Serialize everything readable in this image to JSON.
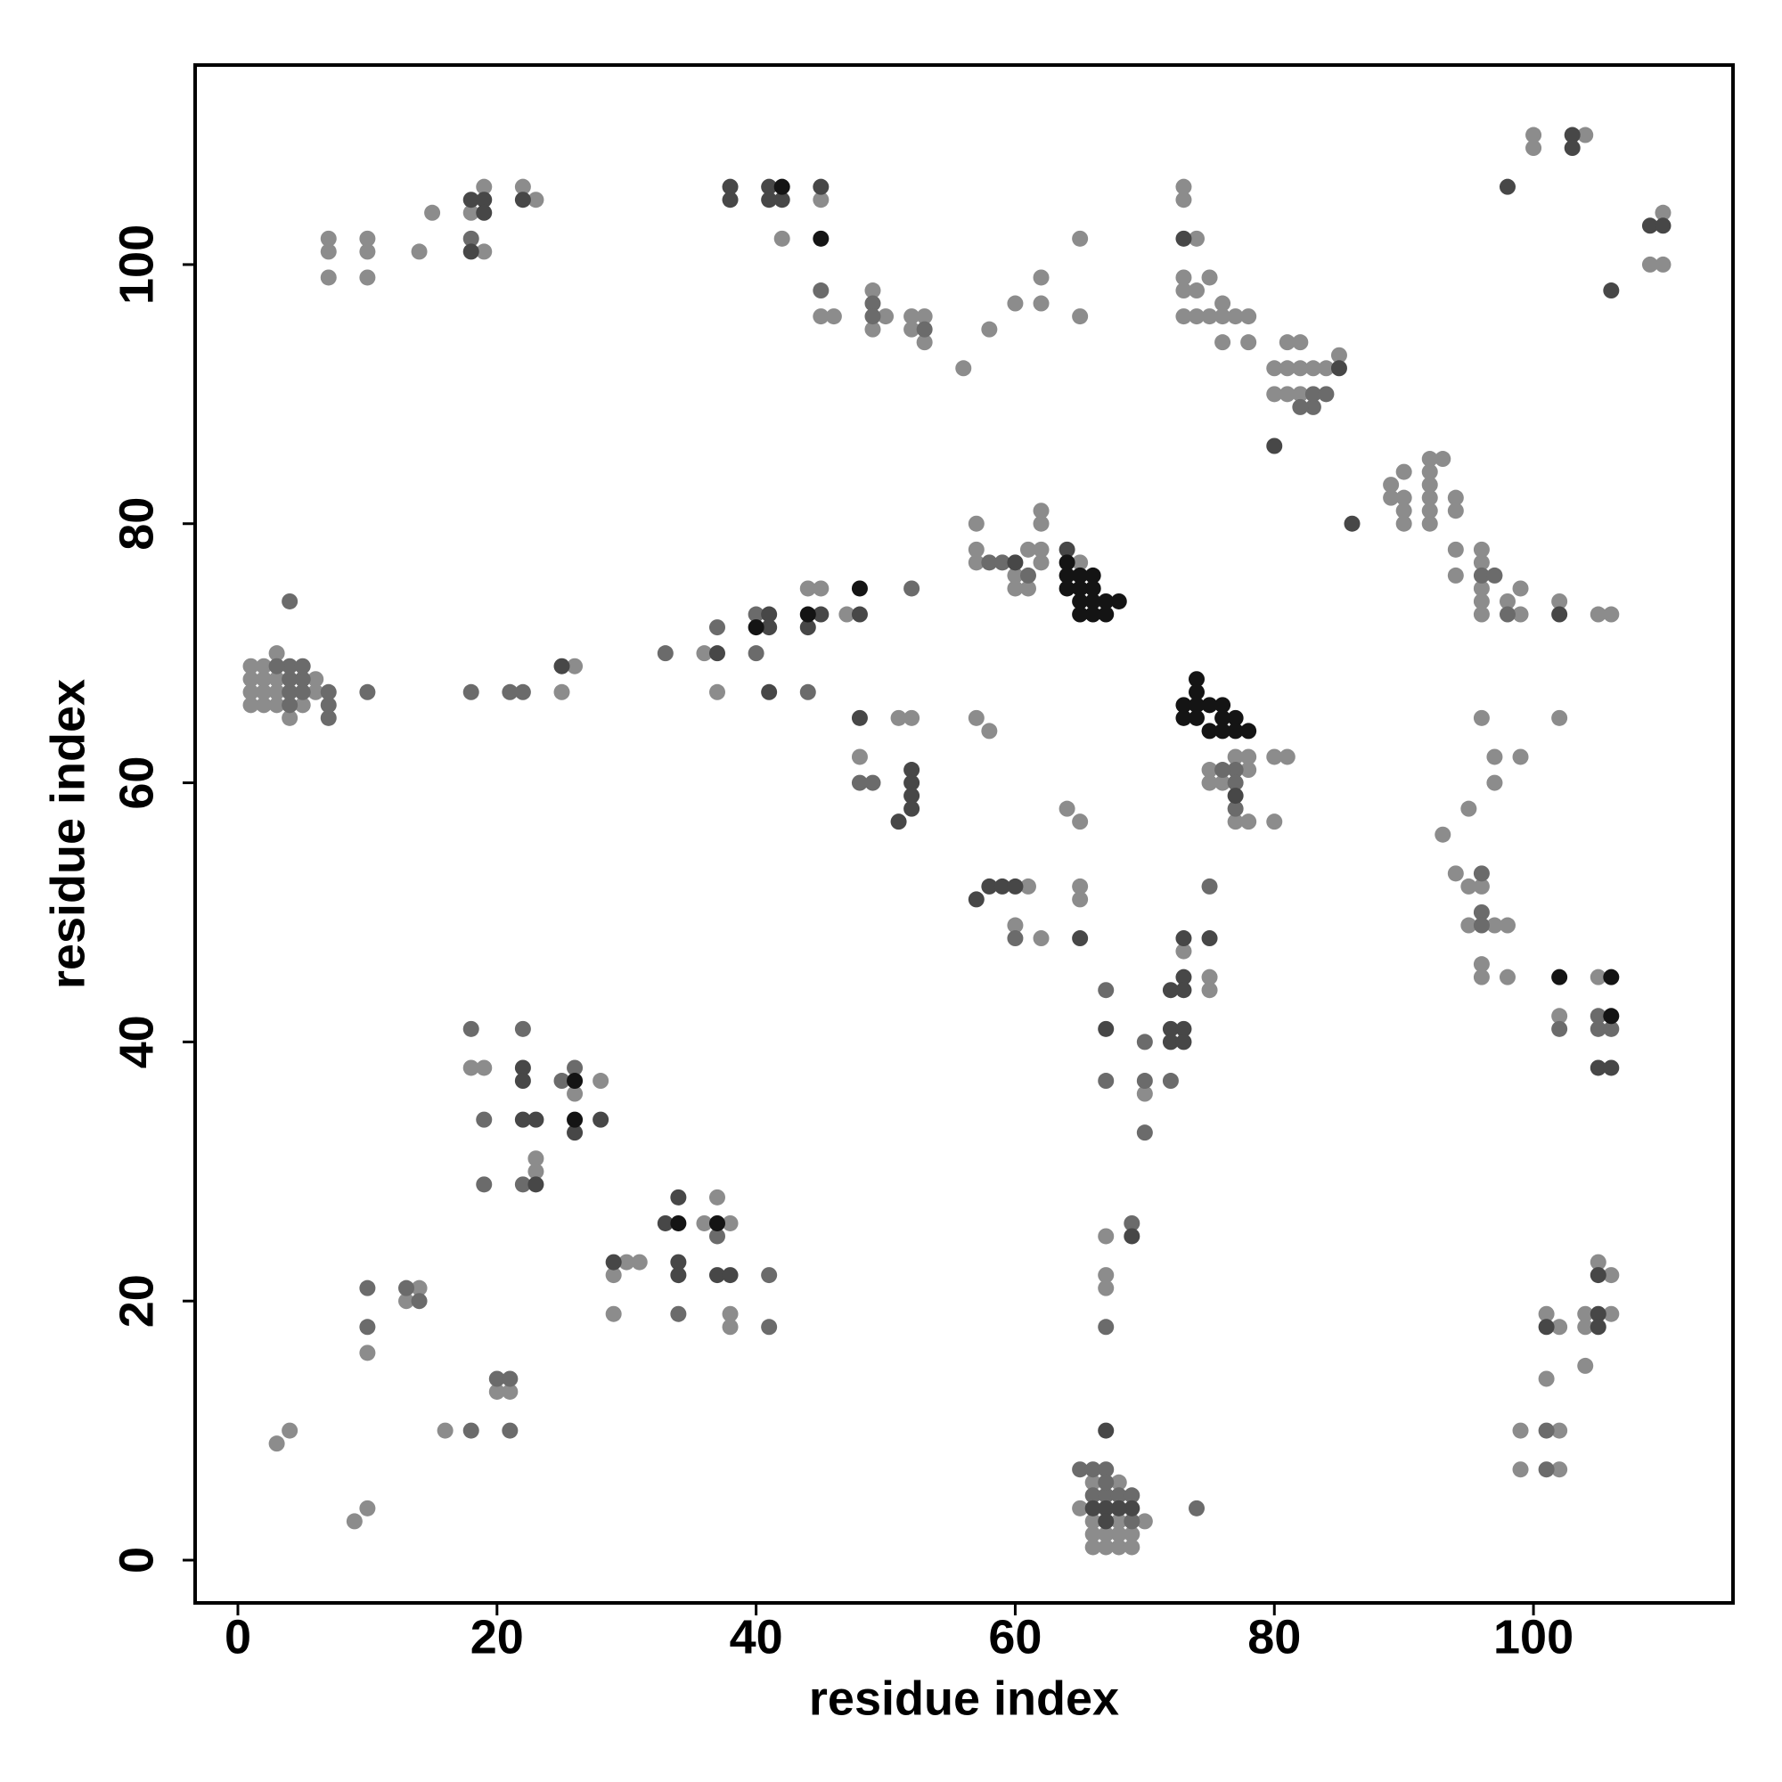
{
  "chart_data": {
    "type": "scatter",
    "xlabel": "residue index",
    "ylabel": "residue index",
    "xlim": [
      -3.3,
      115.4
    ],
    "ylim": [
      -3.3,
      115.4
    ],
    "xticks": [
      0,
      20,
      40,
      60,
      80,
      100
    ],
    "yticks": [
      0,
      20,
      40,
      60,
      80,
      100
    ],
    "grid": false,
    "series": [
      {
        "color": "#8c8c8c",
        "x": [
          3,
          4,
          9,
          10,
          10,
          13,
          14,
          16,
          20,
          21,
          18,
          19,
          23,
          23,
          26,
          28,
          29,
          30,
          31,
          29,
          36,
          37,
          38,
          38,
          38,
          1,
          1,
          1,
          1,
          2,
          2,
          2,
          2,
          3,
          3,
          3,
          4,
          5,
          6,
          6,
          25,
          26,
          37,
          36,
          44,
          45,
          47,
          52,
          51,
          48,
          57,
          58,
          61,
          60,
          62,
          64,
          65,
          65,
          65,
          57,
          57,
          57,
          60,
          60,
          61,
          62,
          62,
          61,
          62,
          62,
          65,
          58,
          56,
          60,
          62,
          62,
          65,
          65,
          73,
          73,
          74,
          73,
          73,
          73,
          74,
          74,
          75,
          75,
          76,
          76,
          76,
          77,
          78,
          78,
          80,
          80,
          81,
          81,
          81,
          82,
          82,
          82,
          83,
          84,
          85,
          75,
          75,
          76,
          77,
          78,
          78,
          78,
          77,
          80,
          81,
          80,
          70,
          73,
          75,
          75,
          67,
          67,
          67,
          66,
          66,
          66,
          67,
          67,
          68,
          68,
          68,
          68,
          69,
          69,
          70,
          65,
          66,
          7,
          7,
          7,
          10,
          10,
          10,
          14,
          15,
          18,
          19,
          19,
          22,
          23,
          42,
          45,
          45,
          46,
          49,
          49,
          50,
          52,
          53,
          52,
          53,
          100,
          100,
          104,
          110,
          109,
          110,
          89,
          89,
          90,
          90,
          90,
          90,
          92,
          92,
          92,
          92,
          92,
          92,
          93,
          94,
          94,
          94,
          94,
          96,
          96,
          96,
          96,
          96,
          98,
          99,
          99,
          102,
          105,
          106,
          96,
          97,
          97,
          99,
          102,
          95,
          93,
          94,
          95,
          96,
          95,
          97,
          98,
          96,
          96,
          98,
          102,
          105,
          105,
          106,
          104,
          106,
          104,
          101,
          102,
          104,
          101,
          99,
          102,
          99,
          102,
          3
        ],
        "values": [
          9,
          10,
          3,
          4,
          16,
          20,
          21,
          10,
          13,
          13,
          38,
          38,
          31,
          30,
          36,
          37,
          22,
          23,
          23,
          19,
          26,
          28,
          26,
          19,
          18,
          66,
          67,
          68,
          69,
          66,
          67,
          68,
          69,
          66,
          67,
          68,
          65,
          66,
          67,
          68,
          67,
          69,
          67,
          70,
          75,
          75,
          73,
          65,
          65,
          62,
          65,
          64,
          52,
          49,
          48,
          58,
          57,
          52,
          51,
          80,
          78,
          77,
          76,
          75,
          75,
          81,
          80,
          78,
          78,
          77,
          77,
          95,
          92,
          97,
          97,
          99,
          102,
          96,
          105,
          106,
          102,
          99,
          98,
          96,
          98,
          96,
          96,
          99,
          96,
          97,
          94,
          96,
          96,
          94,
          92,
          90,
          92,
          90,
          94,
          94,
          92,
          90,
          92,
          92,
          93,
          61,
          60,
          60,
          62,
          62,
          61,
          57,
          57,
          62,
          62,
          57,
          36,
          47,
          45,
          44,
          25,
          22,
          21,
          1,
          2,
          3,
          1,
          2,
          1,
          2,
          3,
          6,
          1,
          2,
          3,
          4,
          6,
          102,
          101,
          99,
          102,
          101,
          99,
          101,
          104,
          104,
          106,
          101,
          106,
          105,
          102,
          105,
          96,
          96,
          98,
          95,
          96,
          96,
          96,
          95,
          94,
          110,
          109,
          110,
          104,
          100,
          100,
          83,
          82,
          84,
          82,
          81,
          80,
          85,
          84,
          83,
          82,
          81,
          80,
          85,
          82,
          81,
          78,
          76,
          78,
          77,
          75,
          74,
          73,
          74,
          75,
          73,
          74,
          73,
          73,
          65,
          62,
          60,
          62,
          65,
          58,
          56,
          53,
          52,
          52,
          49,
          49,
          49,
          46,
          45,
          45,
          42,
          45,
          23,
          22,
          19,
          19,
          18,
          19,
          18,
          15,
          14,
          10,
          10,
          7,
          7,
          70
        ]
      },
      {
        "color": "#6b6b6b",
        "x": [
          10,
          10,
          13,
          14,
          18,
          21,
          20,
          21,
          18,
          19,
          19,
          22,
          22,
          25,
          26,
          34,
          37,
          41,
          41,
          4,
          4,
          4,
          4,
          5,
          5,
          5,
          7,
          7,
          7,
          3,
          4,
          10,
          18,
          21,
          22,
          33,
          37,
          40,
          40,
          44,
          52,
          48,
          49,
          60,
          58,
          59,
          61,
          67,
          67,
          70,
          70,
          70,
          72,
          75,
          67,
          69,
          74,
          65,
          66,
          67,
          66,
          67,
          67,
          68,
          69,
          69,
          18,
          45,
          49,
          49,
          53,
          83,
          83,
          84,
          82,
          77,
          77,
          76,
          77,
          102,
          105,
          106,
          105,
          101,
          101,
          96,
          97,
          98,
          96,
          96,
          96
        ],
        "values": [
          21,
          18,
          21,
          20,
          10,
          10,
          14,
          14,
          41,
          34,
          29,
          41,
          29,
          37,
          38,
          19,
          25,
          22,
          18,
          66,
          67,
          68,
          69,
          67,
          68,
          69,
          65,
          66,
          67,
          69,
          74,
          67,
          67,
          67,
          67,
          70,
          72,
          70,
          73,
          67,
          75,
          60,
          60,
          48,
          77,
          77,
          76,
          44,
          37,
          40,
          37,
          33,
          37,
          52,
          18,
          26,
          4,
          7,
          7,
          7,
          5,
          5,
          6,
          5,
          3,
          5,
          102,
          98,
          97,
          96,
          95,
          89,
          90,
          90,
          89,
          61,
          60,
          61,
          58,
          41,
          41,
          41,
          42,
          10,
          7,
          76,
          76,
          73,
          53,
          50,
          49
        ]
      },
      {
        "color": "#474747",
        "x": [
          22,
          22,
          22,
          23,
          23,
          26,
          28,
          29,
          33,
          34,
          34,
          34,
          37,
          38,
          25,
          37,
          41,
          41,
          41,
          44,
          45,
          48,
          48,
          52,
          52,
          52,
          52,
          51,
          57,
          58,
          59,
          60,
          65,
          60,
          64,
          67,
          72,
          72,
          72,
          73,
          73,
          73,
          73,
          73,
          75,
          69,
          67,
          66,
          67,
          67,
          69,
          68,
          18,
          19,
          19,
          18,
          22,
          38,
          38,
          41,
          41,
          45,
          42,
          73,
          85,
          80,
          86,
          98,
          103,
          103,
          109,
          110,
          106,
          102,
          105,
          106,
          105,
          105,
          101,
          105,
          77
        ],
        "values": [
          38,
          37,
          34,
          34,
          29,
          33,
          34,
          23,
          26,
          28,
          23,
          22,
          22,
          22,
          69,
          70,
          72,
          73,
          67,
          72,
          73,
          73,
          65,
          61,
          60,
          59,
          58,
          57,
          51,
          52,
          52,
          52,
          48,
          77,
          78,
          41,
          44,
          41,
          40,
          48,
          45,
          44,
          41,
          40,
          48,
          25,
          10,
          4,
          4,
          3,
          4,
          4,
          105,
          105,
          104,
          101,
          105,
          106,
          105,
          106,
          105,
          106,
          105,
          102,
          92,
          86,
          80,
          106,
          110,
          109,
          103,
          103,
          98,
          73,
          38,
          38,
          19,
          18,
          18,
          22,
          59
        ]
      },
      {
        "color": "#141414",
        "x": [
          26,
          26,
          34,
          37,
          40,
          44,
          48,
          42,
          45,
          64,
          64,
          65,
          66,
          64,
          65,
          66,
          65,
          66,
          67,
          68,
          65,
          66,
          67,
          73,
          73,
          74,
          74,
          74,
          74,
          75,
          75,
          76,
          76,
          76,
          77,
          77,
          78,
          102,
          106,
          106
        ],
        "values": [
          37,
          34,
          26,
          26,
          72,
          73,
          75,
          106,
          102,
          77,
          76,
          76,
          76,
          75,
          75,
          75,
          74,
          74,
          74,
          74,
          73,
          73,
          73,
          66,
          65,
          68,
          67,
          66,
          65,
          66,
          64,
          66,
          65,
          64,
          65,
          64,
          64,
          45,
          42,
          45
        ]
      }
    ]
  }
}
